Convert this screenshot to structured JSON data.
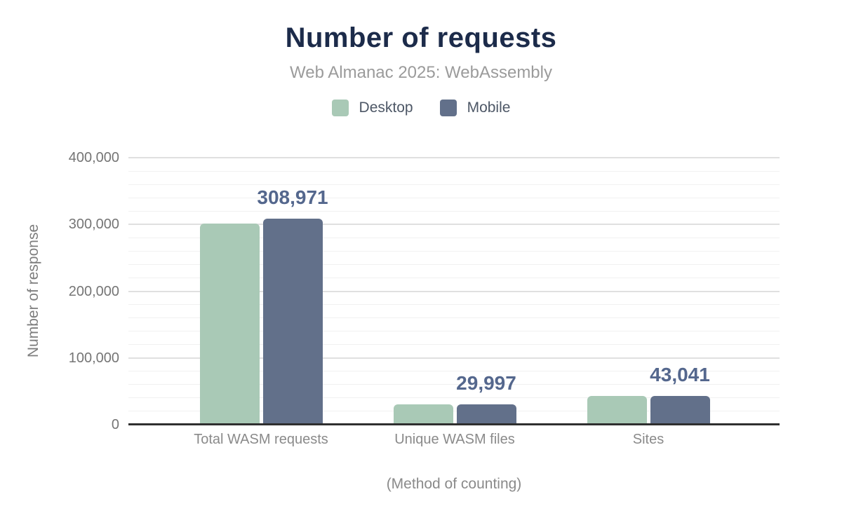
{
  "chart_data": {
    "type": "bar",
    "title": "Number of requests",
    "subtitle": "Web Almanac 2025: WebAssembly",
    "categories": [
      "Total WASM requests",
      "Unique WASM files",
      "Sites"
    ],
    "series": [
      {
        "name": "Desktop",
        "color": "#a9c9b6",
        "values": [
          301500,
          30700,
          42800
        ]
      },
      {
        "name": "Mobile",
        "color": "#62708a",
        "values": [
          308971,
          29997,
          43041
        ]
      }
    ],
    "annotations": {
      "series": "Mobile",
      "labels": [
        "308,971",
        "29,997",
        "43,041"
      ],
      "color": "#54678d"
    },
    "xlabel": "(Method of counting)",
    "ylabel": "Number of response",
    "ylim": [
      0,
      400000
    ],
    "yticks": [
      {
        "value": 0,
        "label": "0"
      },
      {
        "value": 100000,
        "label": "100,000"
      },
      {
        "value": 200000,
        "label": "200,000"
      },
      {
        "value": 300000,
        "label": "300,000"
      },
      {
        "value": 400000,
        "label": "400,000"
      }
    ],
    "minor_grid_step": 20000,
    "grid": true,
    "legend_position": "top",
    "title_color": "#1c2b4a"
  }
}
